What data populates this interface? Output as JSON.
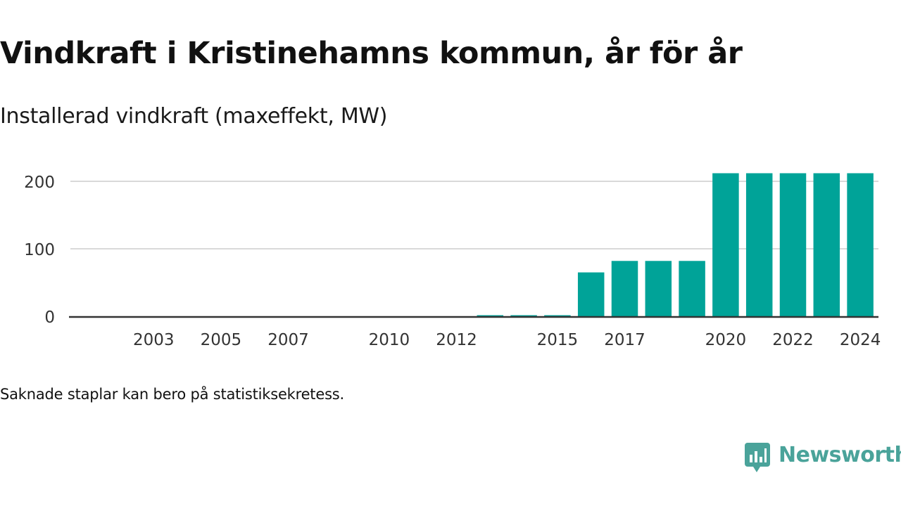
{
  "header": {
    "title": "Vindkraft i Kristinehamns kommun, år för år",
    "subtitle": "Installerad vindkraft (maxeffekt, MW)"
  },
  "footer": {
    "note": "Saknade staplar kan bero på statistiksekretess.",
    "brand_name": "Newsworthy",
    "brand_icon": "speech-bubble-bar-chart-icon"
  },
  "colors": {
    "bar": "#00a398",
    "grid": "#d9d9d9",
    "axis": "#333333",
    "brand": "#4aa39a"
  },
  "chart_data": {
    "type": "bar",
    "title": "Vindkraft i Kristinehamns kommun, år för år",
    "subtitle": "Installerad vindkraft (maxeffekt, MW)",
    "xlabel": "",
    "ylabel": "",
    "ylim": [
      0,
      200
    ],
    "y_ticks": [
      0,
      100,
      200
    ],
    "grid": true,
    "categories": [
      "2002",
      "2003",
      "2004",
      "2005",
      "2006",
      "2007",
      "2008",
      "2009",
      "2010",
      "2011",
      "2012",
      "2013",
      "2014",
      "2015",
      "2016",
      "2017",
      "2018",
      "2019",
      "2020",
      "2021",
      "2022",
      "2023",
      "2024"
    ],
    "x_tick_labels": [
      "2003",
      "2005",
      "2007",
      "2010",
      "2012",
      "2015",
      "2017",
      "2020",
      "2022",
      "2024"
    ],
    "values": [
      null,
      null,
      null,
      null,
      null,
      null,
      null,
      null,
      null,
      null,
      null,
      1,
      1,
      1,
      65,
      82,
      82,
      82,
      212,
      212,
      212,
      212,
      212
    ]
  }
}
